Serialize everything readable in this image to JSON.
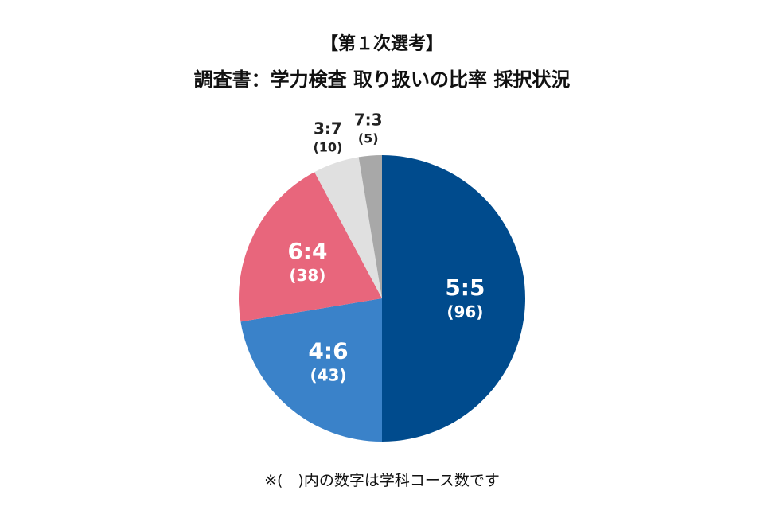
{
  "chart_data": {
    "type": "pie",
    "title": "【第１次選考】",
    "subtitle": "調査書：学力検査 取り扱いの比率 採択状況",
    "footnote": "※(　)内の数字は学科コース数です",
    "slices": [
      {
        "label": "5:5",
        "value": 96,
        "count_text": "(96)",
        "color": "#004b8d",
        "label_position": "inside"
      },
      {
        "label": "4:6",
        "value": 43,
        "count_text": "(43)",
        "color": "#3a82c9",
        "label_position": "inside"
      },
      {
        "label": "6:4",
        "value": 38,
        "count_text": "(38)",
        "color": "#e8667c",
        "label_position": "inside"
      },
      {
        "label": "3:7",
        "value": 10,
        "count_text": "(10)",
        "color": "#e0e0e0",
        "label_position": "outside"
      },
      {
        "label": "7:3",
        "value": 5,
        "count_text": "(5)",
        "color": "#a8a8a8",
        "label_position": "outside"
      }
    ],
    "start_angle": "12 o'clock",
    "direction": "clockwise",
    "legend": "none"
  }
}
